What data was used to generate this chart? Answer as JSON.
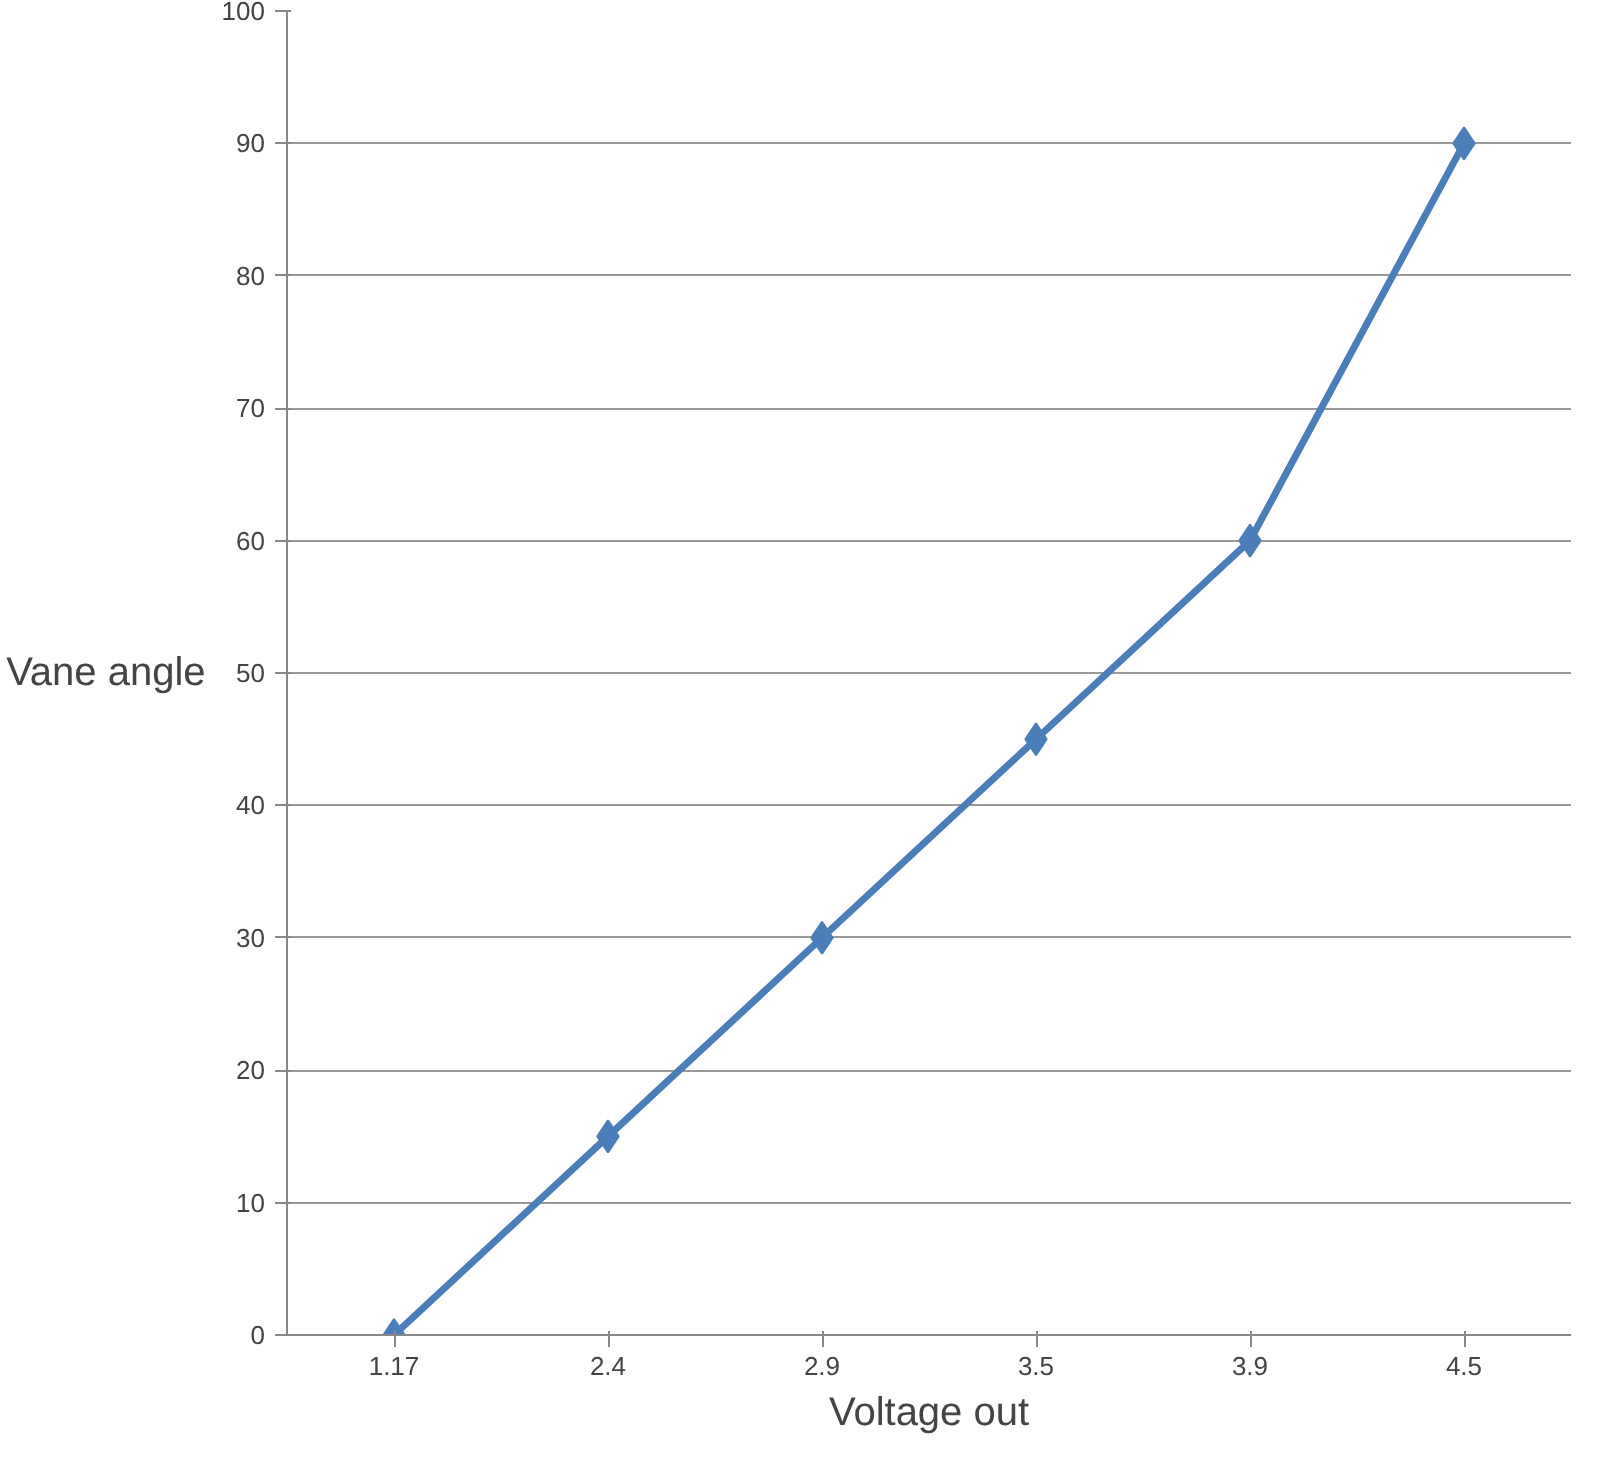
{
  "chart_data": {
    "type": "line",
    "xlabel": "Voltage out",
    "ylabel": "Vane angle",
    "categories": [
      "1.17",
      "2.4",
      "2.9",
      "3.5",
      "3.9",
      "4.5"
    ],
    "series": [
      {
        "color": "#4a7ebb",
        "values": [
          0,
          15,
          30,
          45,
          60,
          90
        ]
      }
    ],
    "ylim": [
      0,
      100
    ],
    "yticks": [
      0,
      10,
      20,
      30,
      40,
      50,
      60,
      70,
      80,
      90,
      100
    ],
    "grid": "y",
    "marker": "diamond",
    "line_style": "solid"
  }
}
